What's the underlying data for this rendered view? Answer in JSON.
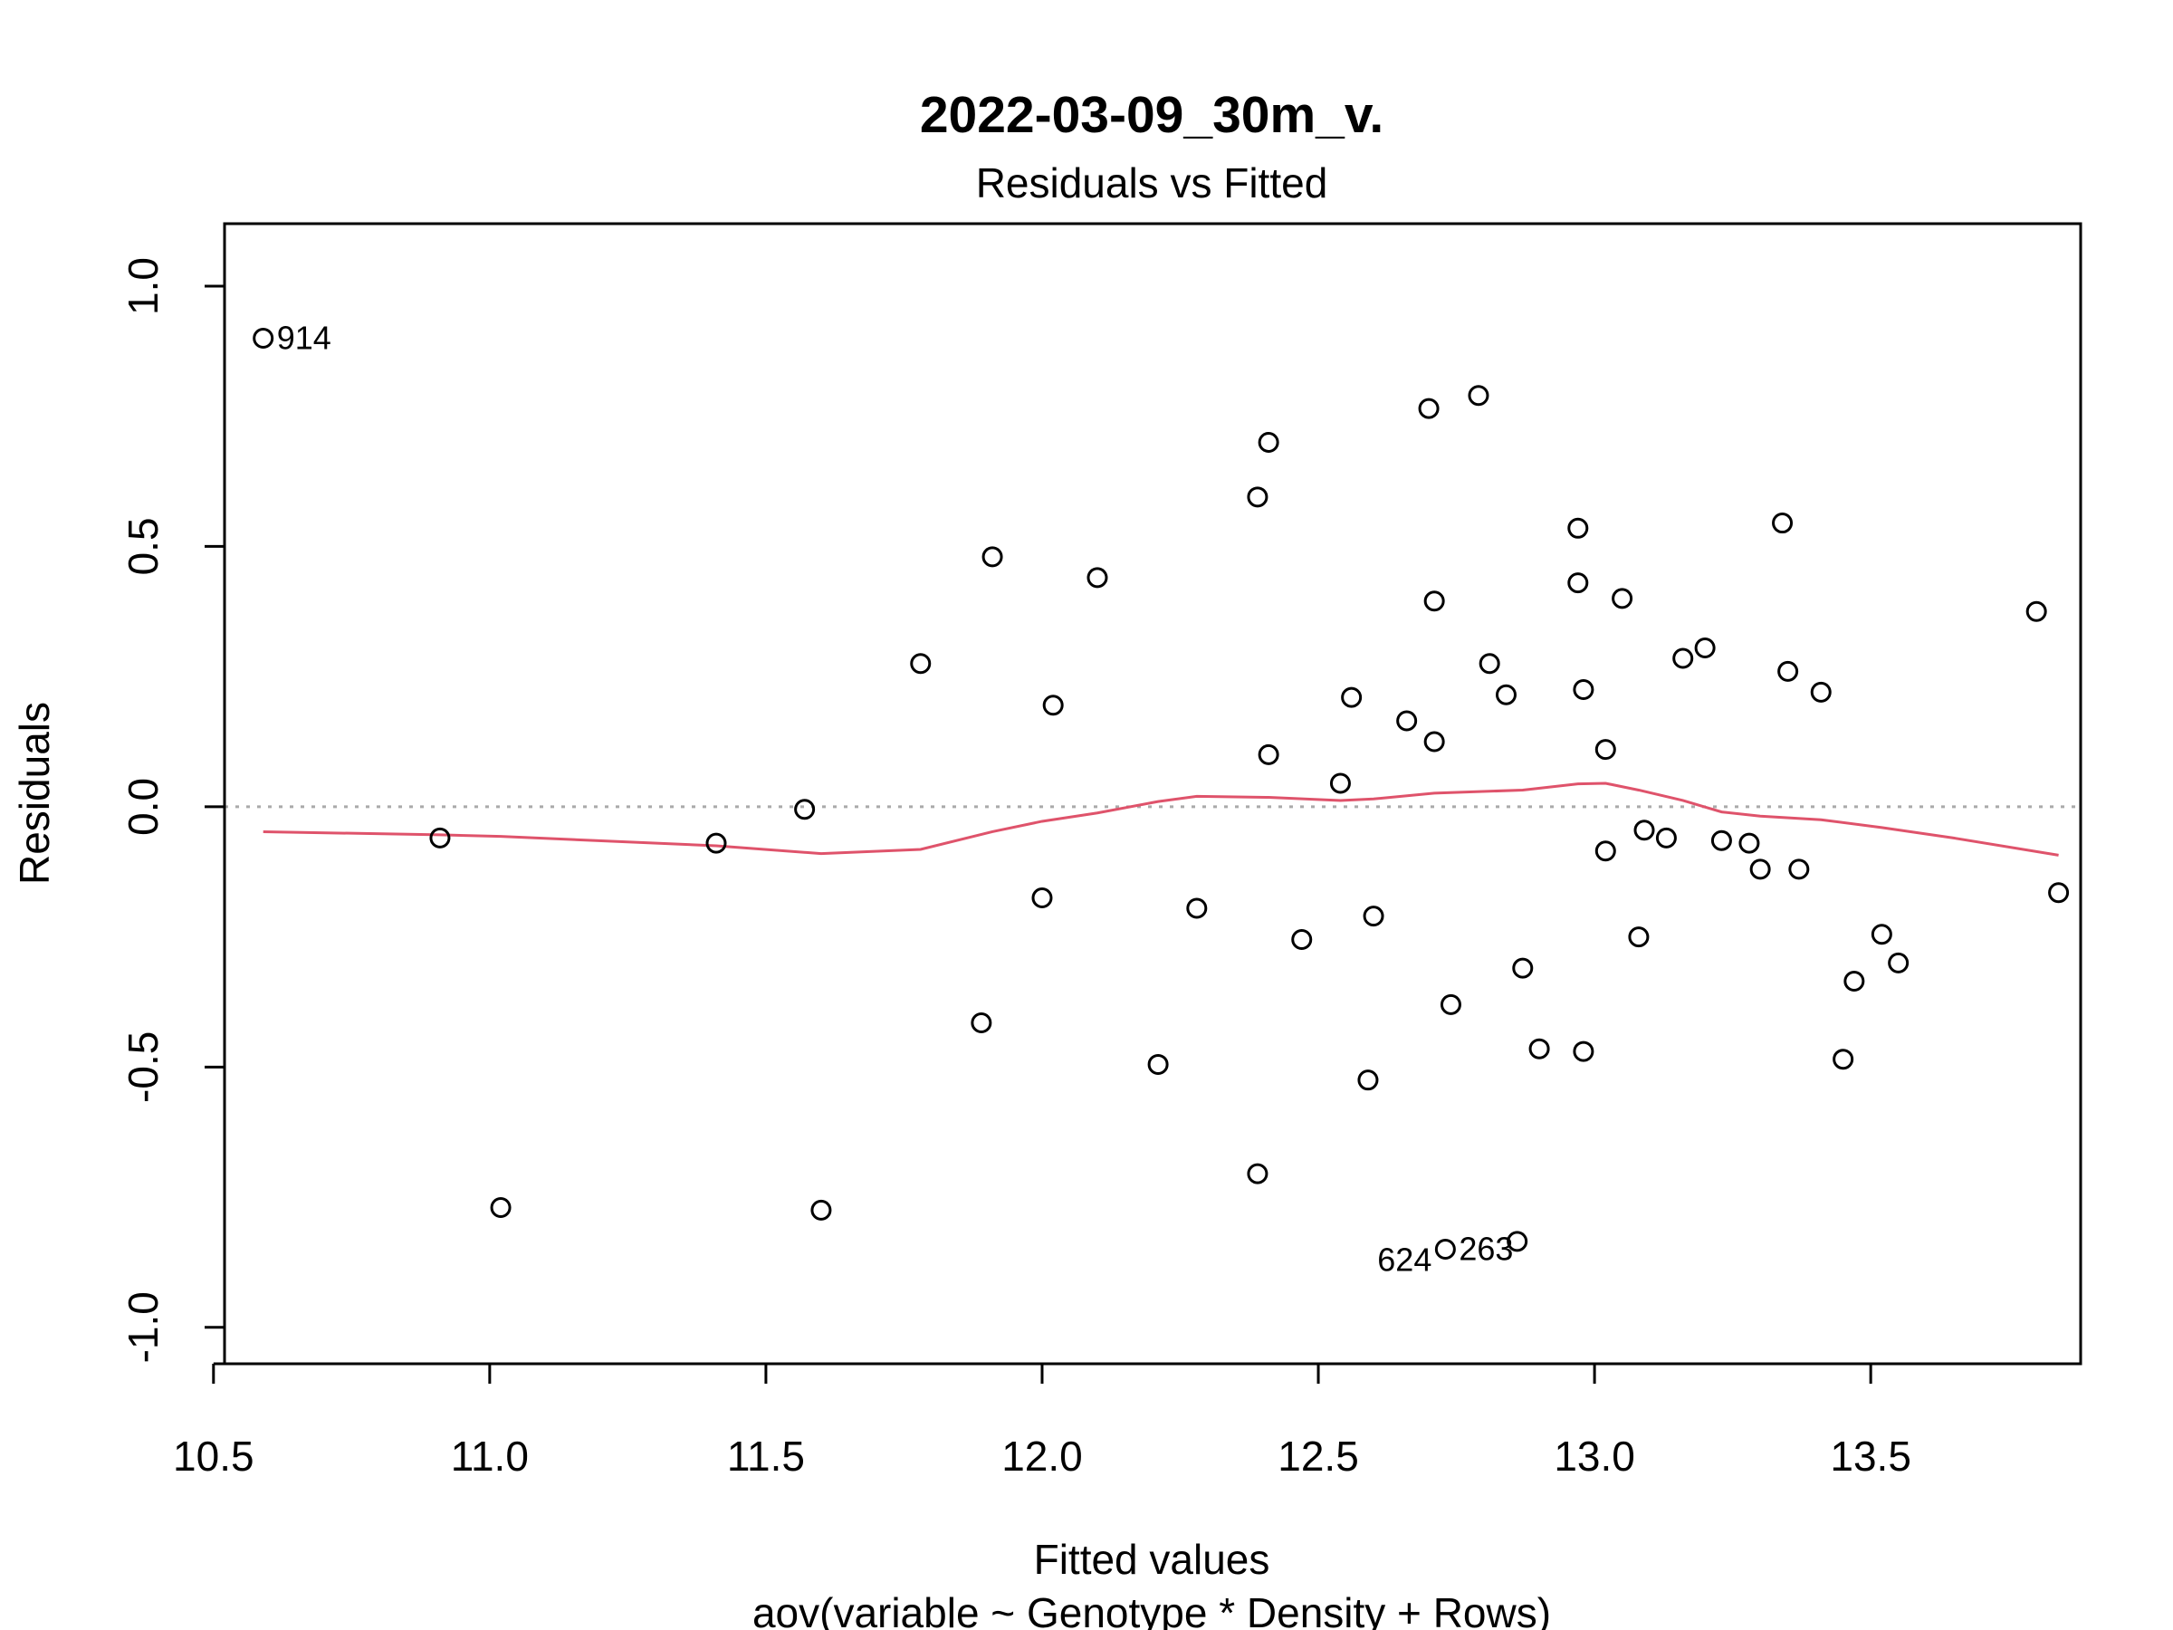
{
  "chart_data": {
    "type": "scatter",
    "title": "2022-03-09_30m_v.",
    "subtitle": "Residuals vs Fitted",
    "xlabel": "Fitted values",
    "xlabel2": "aov(variable ~ Genotype * Density + Rows)",
    "ylabel": "Residuals",
    "xlim": [
      10.52,
      13.88
    ],
    "ylim": [
      -1.07,
      1.12
    ],
    "xticks": [
      10.5,
      11.0,
      11.5,
      12.0,
      12.5,
      13.0,
      13.5
    ],
    "xtick_labels": [
      "10.5",
      "11.0",
      "11.5",
      "12.0",
      "12.5",
      "13.0",
      "13.5"
    ],
    "yticks": [
      -1.0,
      -0.5,
      0.0,
      0.5,
      1.0
    ],
    "ytick_labels": [
      "-1.0",
      "-0.5",
      "0.0",
      "0.5",
      "1.0"
    ],
    "grid": false,
    "zero_line": true,
    "colors": {
      "points": "#000000",
      "smooth": "#DF536B",
      "zero_line": "#aaaaaa"
    },
    "points": [
      {
        "x": 10.59,
        "y": 0.9
      },
      {
        "x": 10.91,
        "y": -0.06
      },
      {
        "x": 11.02,
        "y": -0.77
      },
      {
        "x": 11.41,
        "y": -0.07
      },
      {
        "x": 11.57,
        "y": -0.005
      },
      {
        "x": 11.6,
        "y": -0.775
      },
      {
        "x": 11.78,
        "y": 0.275
      },
      {
        "x": 11.89,
        "y": -0.415
      },
      {
        "x": 11.91,
        "y": 0.48
      },
      {
        "x": 12.0,
        "y": -0.175
      },
      {
        "x": 12.02,
        "y": 0.195
      },
      {
        "x": 12.1,
        "y": 0.44
      },
      {
        "x": 12.21,
        "y": -0.495
      },
      {
        "x": 12.28,
        "y": -0.195
      },
      {
        "x": 12.39,
        "y": 0.595
      },
      {
        "x": 12.39,
        "y": -0.705
      },
      {
        "x": 12.41,
        "y": 0.7
      },
      {
        "x": 12.41,
        "y": 0.1
      },
      {
        "x": 12.47,
        "y": -0.255
      },
      {
        "x": 12.54,
        "y": 0.045
      },
      {
        "x": 12.56,
        "y": 0.21
      },
      {
        "x": 12.59,
        "y": -0.525
      },
      {
        "x": 12.6,
        "y": -0.21
      },
      {
        "x": 12.66,
        "y": 0.165
      },
      {
        "x": 12.7,
        "y": 0.765
      },
      {
        "x": 12.71,
        "y": 0.395
      },
      {
        "x": 12.71,
        "y": 0.125
      },
      {
        "x": 12.73,
        "y": -0.85
      },
      {
        "x": 12.74,
        "y": -0.38
      },
      {
        "x": 12.79,
        "y": 0.79
      },
      {
        "x": 12.81,
        "y": 0.275
      },
      {
        "x": 12.84,
        "y": 0.215
      },
      {
        "x": 12.86,
        "y": -0.835
      },
      {
        "x": 12.87,
        "y": -0.31
      },
      {
        "x": 12.9,
        "y": -0.465
      },
      {
        "x": 12.97,
        "y": 0.535
      },
      {
        "x": 12.97,
        "y": 0.43
      },
      {
        "x": 12.98,
        "y": 0.225
      },
      {
        "x": 12.98,
        "y": -0.47
      },
      {
        "x": 13.02,
        "y": 0.11
      },
      {
        "x": 13.02,
        "y": -0.085
      },
      {
        "x": 13.05,
        "y": 0.4
      },
      {
        "x": 13.08,
        "y": -0.25
      },
      {
        "x": 13.09,
        "y": -0.045
      },
      {
        "x": 13.13,
        "y": -0.06
      },
      {
        "x": 13.16,
        "y": 0.285
      },
      {
        "x": 13.2,
        "y": 0.305
      },
      {
        "x": 13.23,
        "y": -0.065
      },
      {
        "x": 13.28,
        "y": -0.07
      },
      {
        "x": 13.3,
        "y": -0.12
      },
      {
        "x": 13.34,
        "y": 0.545
      },
      {
        "x": 13.35,
        "y": 0.26
      },
      {
        "x": 13.37,
        "y": -0.12
      },
      {
        "x": 13.41,
        "y": 0.22
      },
      {
        "x": 13.45,
        "y": -0.485
      },
      {
        "x": 13.47,
        "y": -0.335
      },
      {
        "x": 13.52,
        "y": -0.245
      },
      {
        "x": 13.55,
        "y": -0.3
      },
      {
        "x": 13.8,
        "y": 0.375
      },
      {
        "x": 13.84,
        "y": -0.165
      }
    ],
    "point_labels": [
      {
        "text": "914",
        "x": 10.59,
        "y": 0.9,
        "side": "right"
      },
      {
        "text": "624",
        "x": 12.73,
        "y": -0.85,
        "side": "left"
      },
      {
        "text": "263",
        "x": 12.73,
        "y": -0.85,
        "side": "right"
      }
    ],
    "smooth": {
      "x": [
        10.59,
        10.91,
        11.02,
        11.41,
        11.6,
        11.78,
        11.91,
        12.0,
        12.1,
        12.21,
        12.28,
        12.41,
        12.54,
        12.6,
        12.71,
        12.87,
        12.97,
        13.02,
        13.08,
        13.16,
        13.23,
        13.3,
        13.41,
        13.52,
        13.65,
        13.84
      ],
      "y": [
        -0.048,
        -0.054,
        -0.057,
        -0.075,
        -0.09,
        -0.082,
        -0.048,
        -0.028,
        -0.012,
        0.01,
        0.02,
        0.018,
        0.012,
        0.015,
        0.026,
        0.032,
        0.044,
        0.045,
        0.032,
        0.012,
        -0.01,
        -0.018,
        -0.025,
        -0.04,
        -0.06,
        -0.093
      ]
    }
  }
}
